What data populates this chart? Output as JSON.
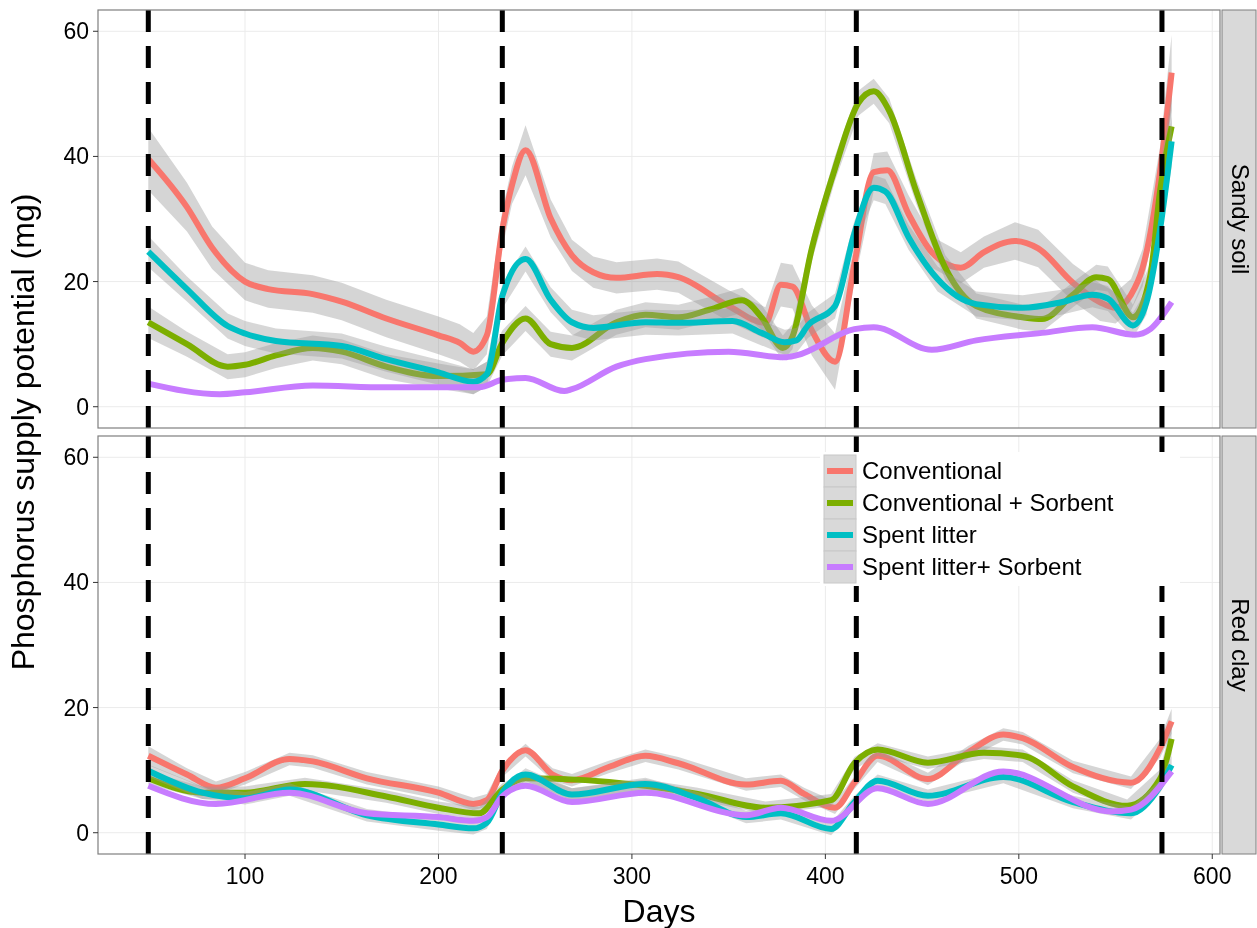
{
  "chart_data": [
    {
      "type": "line",
      "title": "Sandy soil",
      "ylabel": "Phosphorus supply potential (mg)",
      "xlim": [
        24,
        604
      ],
      "xticks": [
        100,
        200,
        300,
        400,
        500,
        600
      ],
      "ylim": [
        -3.4,
        63.4
      ],
      "yticks": [
        0,
        20,
        40,
        60
      ],
      "grid": true,
      "tick_labels": "y",
      "line_style": "solid",
      "ref_lines": [
        {
          "axis": "x",
          "value": 50,
          "color": "#000000",
          "line_style": "dashed"
        },
        {
          "axis": "x",
          "value": 233,
          "color": "#000000",
          "line_style": "dashed"
        },
        {
          "axis": "x",
          "value": 416,
          "color": "#000000",
          "line_style": "dashed"
        },
        {
          "axis": "x",
          "value": 574,
          "color": "#000000",
          "line_style": "dashed"
        }
      ],
      "series": [
        {
          "color": "#f8766d",
          "x": [
            50,
            70,
            83,
            100,
            112,
            135,
            150,
            173,
            200,
            211,
            218,
            225,
            233,
            238,
            245,
            258,
            269,
            280,
            292,
            313,
            324,
            350,
            369,
            377,
            383,
            393,
            405,
            415,
            425,
            432,
            443,
            455,
            470,
            482,
            498,
            510,
            528,
            542,
            550,
            558,
            564,
            573,
            579
          ],
          "values": [
            39.6,
            31.9,
            25.4,
            20,
            18.8,
            18,
            16.8,
            14.1,
            11.4,
            10.2,
            8.8,
            11.4,
            28.3,
            35.4,
            41,
            30.1,
            24.2,
            21.5,
            20.6,
            21.2,
            20.7,
            16.1,
            13.4,
            19.5,
            19.2,
            12.2,
            7.2,
            22.8,
            37.5,
            37.8,
            30.8,
            24.7,
            22.2,
            24.7,
            26.5,
            25.3,
            19.8,
            16.7,
            15.8,
            17.9,
            22.2,
            37.5,
            53.4
          ],
          "lower": [
            34.6,
            28,
            22,
            17,
            15.8,
            15,
            13.8,
            11.1,
            8.4,
            7.2,
            5.8,
            8.4,
            25.3,
            32.4,
            37,
            27.1,
            21.7,
            19,
            18.1,
            18.7,
            18.2,
            13.6,
            10.9,
            16,
            15.7,
            8.2,
            2.7,
            19.8,
            34.5,
            34.8,
            27.8,
            22.2,
            19.7,
            22.2,
            23.5,
            22.3,
            16.8,
            13.7,
            13.3,
            15.4,
            19.2,
            33.5,
            47.4
          ],
          "upper": [
            44.6,
            35.8,
            28.8,
            23,
            21.8,
            21,
            19.8,
            17.1,
            14.4,
            13.2,
            11.8,
            14.4,
            31.3,
            38.4,
            45,
            33.1,
            26.7,
            24,
            23.1,
            23.7,
            23.2,
            18.6,
            15.9,
            23,
            22.7,
            16.2,
            11.7,
            25.8,
            40.5,
            40.8,
            33.8,
            27.2,
            24.7,
            27.2,
            29.5,
            28.3,
            22.8,
            19.7,
            18.3,
            20.4,
            25.2,
            41.5,
            59.4
          ]
        },
        {
          "color": "#7cae00",
          "x": [
            50,
            70,
            91,
            100,
            116,
            135,
            150,
            173,
            200,
            218,
            225,
            233,
            245,
            258,
            269,
            292,
            307,
            324,
            340,
            357,
            367,
            378,
            383,
            393,
            405,
            417,
            425,
            433,
            447,
            462,
            478,
            502,
            512,
            528,
            540,
            546,
            559,
            568,
            573,
            579
          ],
          "values": [
            13.5,
            10,
            6.4,
            6.7,
            8.2,
            9.4,
            8.8,
            6.4,
            4.9,
            null,
            5.2,
            10.2,
            14.1,
            10,
            9.4,
            13.5,
            14.7,
            14.3,
            15.5,
            17,
            14.3,
            9.4,
            11.2,
            25.3,
            38.1,
            48.5,
            50.4,
            47.3,
            34.4,
            22.2,
            16.1,
            14.3,
            14,
            17.9,
            20.7,
            20.4,
            14.3,
            21,
            34.4,
            44.8
          ],
          "lower": [
            11,
            8,
            4.4,
            4.7,
            6.2,
            7.4,
            6.8,
            4.4,
            2.9,
            2,
            3.2,
            8.2,
            12.1,
            8,
            7.4,
            11.5,
            12.7,
            12.3,
            13.5,
            15,
            12.3,
            7.4,
            9.2,
            23.3,
            36.1,
            46.5,
            48.4,
            45.3,
            32.4,
            20.2,
            14.1,
            12.3,
            12,
            15.9,
            18.7,
            18.4,
            12.3,
            19,
            30.4,
            39.8
          ],
          "upper": [
            16,
            12,
            8.4,
            8.7,
            10.2,
            11.4,
            10.8,
            8.4,
            6.9,
            6,
            7.2,
            12.2,
            16.1,
            12,
            11.4,
            15.5,
            16.7,
            16.3,
            17.5,
            19,
            16.3,
            11.4,
            13.2,
            27.3,
            40.1,
            50.5,
            52.4,
            49.3,
            36.4,
            24.2,
            18.1,
            16.3,
            16,
            19.9,
            22.7,
            22.4,
            16.3,
            23,
            38.4,
            49.8
          ]
        },
        {
          "color": "#00bfc4",
          "x": [
            50,
            70,
            91,
            100,
            116,
            150,
            173,
            200,
            218,
            225,
            233,
            245,
            258,
            269,
            280,
            307,
            324,
            352,
            367,
            379,
            385,
            391,
            405,
            415,
            425,
            431,
            443,
            458,
            478,
            502,
            522,
            538,
            546,
            559,
            566,
            573,
            579
          ],
          "values": [
            24.8,
            18.8,
            12.9,
            11.7,
            10.5,
            9.7,
            7.6,
            5.5,
            4,
            5.2,
            17.7,
            23.6,
            17.1,
            13.5,
            12.6,
            13.5,
            13.4,
            13.7,
            11.8,
            10.3,
            10.6,
            13,
            16.1,
            27.7,
            35,
            34.4,
            27.1,
            20.4,
            16.4,
            15.8,
            16.7,
            17.9,
            17.3,
            13,
            16.7,
            28.3,
            42.4
          ],
          "lower": [
            22.3,
            16.8,
            10.9,
            9.7,
            8.5,
            7.7,
            5.6,
            3.5,
            2,
            3.2,
            15.7,
            21.6,
            15.1,
            11.5,
            10.6,
            11.5,
            11.4,
            11.7,
            9.8,
            8.3,
            8.6,
            11,
            14.1,
            25.7,
            33,
            32.4,
            25.1,
            18.4,
            14.4,
            13.8,
            14.7,
            15.9,
            15.3,
            11,
            14.7,
            26.3,
            38.4
          ],
          "upper": [
            27.3,
            20.8,
            14.9,
            13.7,
            12.5,
            11.7,
            9.6,
            7.5,
            6,
            7.2,
            19.7,
            25.6,
            19.1,
            15.5,
            14.6,
            15.5,
            15.4,
            15.7,
            13.8,
            12.3,
            12.6,
            15,
            18.1,
            29.7,
            37,
            36.4,
            29.1,
            22.4,
            18.4,
            17.8,
            18.7,
            19.9,
            19.3,
            15,
            18.7,
            30.3,
            46.4
          ]
        },
        {
          "color": "#c77cff",
          "x": [
            50,
            87,
            100,
            135,
            173,
            211,
            221,
            233,
            245,
            265,
            269,
            292,
            307,
            350,
            379,
            385,
            415,
            425,
            455,
            478,
            512,
            538,
            560,
            568,
            579
          ],
          "values": [
            3.7,
            2,
            2.3,
            3.4,
            3.1,
            3.1,
            3.1,
            4.3,
            4.6,
            2.5,
            2.8,
            6.4,
            7.6,
            8.8,
            7.9,
            8.2,
            12.4,
            12.7,
            9.1,
            10.6,
            11.8,
            12.7,
            11.5,
            12.4,
            16.7
          ]
        }
      ]
    },
    {
      "type": "line",
      "title": "Red clay",
      "xlabel": "Days",
      "xlim": [
        24,
        604
      ],
      "xticks": [
        100,
        200,
        300,
        400,
        500,
        600
      ],
      "ylim": [
        -3.4,
        63.4
      ],
      "yticks": [
        0,
        20,
        40,
        60
      ],
      "grid": true,
      "legend": "top right",
      "line_style": "solid",
      "ref_lines": [
        {
          "axis": "x",
          "value": 50,
          "color": "#000000",
          "line_style": "dashed"
        },
        {
          "axis": "x",
          "value": 233,
          "color": "#000000",
          "line_style": "dashed"
        },
        {
          "axis": "x",
          "value": 416,
          "color": "#000000",
          "line_style": "dashed"
        },
        {
          "axis": "x",
          "value": 574,
          "color": "#000000",
          "line_style": "dashed"
        }
      ],
      "series": [
        {
          "name": "Conventional",
          "color": "#f8766d",
          "x": [
            50,
            70,
            85,
            100,
            123,
            135,
            163,
            200,
            218,
            225,
            233,
            245,
            259,
            269,
            288,
            307,
            324,
            359,
            377,
            389,
            405,
            415,
            427,
            453,
            474,
            492,
            502,
            528,
            558,
            573,
            579
          ],
          "values": [
            12.3,
            9.3,
            7.2,
            8.7,
            11.8,
            11.4,
            8.7,
            6.4,
            4.6,
            5.2,
            9.9,
            13.2,
            9.3,
            8.4,
            10.5,
            12.3,
            11.1,
            7.7,
            8.3,
            6.2,
            4,
            8,
            12.3,
            8.6,
            12.9,
            15.7,
            15.1,
            10.5,
            8,
            13.5,
            17.8
          ],
          "lower": [
            10.8,
            8.3,
            6.2,
            7.7,
            10.8,
            10.4,
            7.7,
            5.4,
            3.6,
            4.2,
            8.9,
            12.2,
            8.3,
            7.4,
            9.5,
            11.3,
            10.1,
            6.7,
            7.3,
            5.2,
            3,
            7,
            11.3,
            7.6,
            11.9,
            14.7,
            14.1,
            9.5,
            7,
            12,
            15.8
          ],
          "upper": [
            13.8,
            10.3,
            8.2,
            9.7,
            12.8,
            12.4,
            9.7,
            7.4,
            5.6,
            6.2,
            10.9,
            14.2,
            10.3,
            9.4,
            11.5,
            13.3,
            12.1,
            8.7,
            9.3,
            7.2,
            5,
            9,
            13.3,
            9.6,
            13.9,
            16.7,
            16.1,
            11.5,
            9,
            15,
            19.8
          ]
        },
        {
          "name": "Conventional + Sorbent",
          "color": "#7cae00",
          "x": [
            50,
            78,
            100,
            131,
            173,
            200,
            221,
            233,
            245,
            269,
            307,
            334,
            369,
            403,
            415,
            427,
            453,
            482,
            502,
            528,
            556,
            573,
            579
          ],
          "values": [
            8.7,
            6.4,
            6.4,
            7.8,
            5.8,
            4,
            3.1,
            6.9,
            8.7,
            null,
            7.5,
            6.2,
            4,
            5.2,
            11.1,
            13.3,
            11.2,
            12.8,
            12.3,
            7.4,
            4.3,
            8.6,
            15
          ],
          "lower": [
            7.7,
            5.4,
            5.4,
            6.8,
            4.8,
            3,
            2.1,
            5.9,
            7.7,
            5.1,
            6.5,
            5.2,
            3,
            4.2,
            10.1,
            12.3,
            10.2,
            11.8,
            11.3,
            6.4,
            3.3,
            7.1,
            12.5
          ],
          "upper": [
            9.7,
            7.4,
            7.4,
            8.8,
            6.8,
            5,
            4.1,
            7.9,
            9.7,
            7.1,
            8.5,
            7.2,
            5,
            6.2,
            12.1,
            14.3,
            12.2,
            13.8,
            13.3,
            8.4,
            5.3,
            10.1,
            17.5
          ]
        },
        {
          "name": "Spent litter",
          "color": "#00bfc4",
          "x": [
            50,
            78,
            100,
            123,
            163,
            200,
            218,
            225,
            233,
            245,
            269,
            307,
            334,
            359,
            377,
            403,
            415,
            427,
            453,
            492,
            528,
            558,
            573,
            579
          ],
          "values": [
            9.9,
            6.4,
            5.5,
            6.9,
            2.8,
            1.3,
            0.7,
            1.6,
            6.4,
            9.3,
            6.1,
            7.8,
            5.5,
            2.5,
            3.1,
            0.6,
            4.9,
            8.3,
            5.9,
            8.9,
            4.9,
            3.1,
            7.4,
            10.8
          ],
          "lower": [
            8.9,
            5.4,
            4.5,
            5.9,
            1.8,
            0.3,
            -0.3,
            0.6,
            5.4,
            8.3,
            5.1,
            6.8,
            4.5,
            1.5,
            2.1,
            -0.4,
            3.9,
            7.3,
            4.9,
            7.9,
            3.9,
            2.1,
            6.4,
            9.3
          ],
          "upper": [
            10.9,
            7.4,
            6.5,
            7.9,
            3.8,
            2.3,
            1.7,
            2.6,
            7.4,
            10.3,
            7.1,
            8.8,
            6.5,
            3.5,
            4.1,
            1.6,
            5.9,
            9.3,
            6.9,
            9.9,
            5.9,
            4.1,
            8.4,
            12.3
          ]
        },
        {
          "name": "Spent litter+ Sorbent",
          "color": "#c77cff",
          "x": [
            50,
            85,
            123,
            163,
            200,
            218,
            225,
            233,
            245,
            269,
            307,
            359,
            377,
            403,
            427,
            453,
            492,
            548,
            558,
            579
          ],
          "values": [
            7.5,
            4.6,
            6.4,
            3.1,
            2.5,
            1.9,
            2.5,
            5.8,
            7.5,
            4.9,
            6.4,
            2.8,
            4,
            1.9,
            7.1,
            4.6,
            9.8,
            3.4,
            3.7,
            9.8
          ]
        }
      ]
    }
  ]
}
